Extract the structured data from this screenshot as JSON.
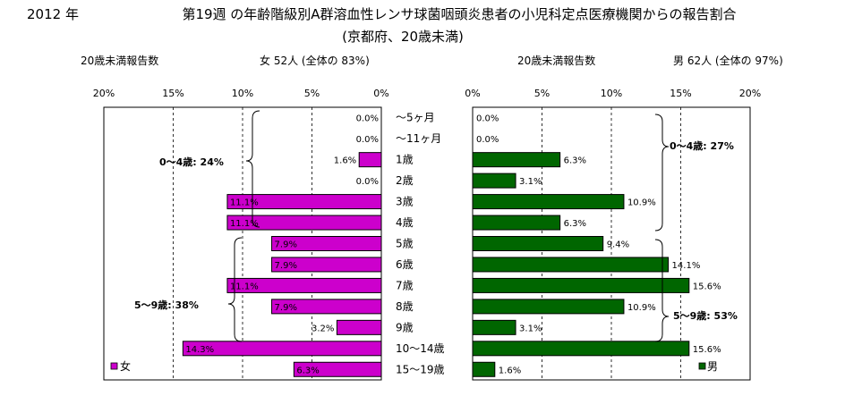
{
  "header": {
    "year": "2012 年",
    "title_line1": "第19週 の年齢階級別A群溶血性レンサ球菌咽頭炎患者の小児科定点医療機関からの報告割合",
    "title_line2": "(京都府、20歳未満)"
  },
  "left": {
    "caption": "20歳未満報告数",
    "summary": "女  52人 (全体の  83%)",
    "legend": "女",
    "bracket1": "0〜4歳:  24%",
    "bracket2": "5〜9歳:  38%"
  },
  "right": {
    "caption": "20歳未満報告数",
    "summary": "男  62人 (全体の  97%)",
    "legend": "男",
    "bracket1": "0〜4歳:  27%",
    "bracket2": "5〜9歳:  53%"
  },
  "chart_data": [
    {
      "type": "bar",
      "orientation": "horizontal",
      "direction": "right-to-left",
      "series": [
        {
          "name": "女",
          "color": "#cc00cc",
          "values": [
            0.0,
            0.0,
            1.6,
            0.0,
            11.1,
            11.1,
            7.9,
            7.9,
            11.1,
            7.9,
            3.2,
            14.3,
            6.3
          ]
        }
      ],
      "categories": [
        "〜5ヶ月",
        "〜11ヶ月",
        "1歳",
        "2歳",
        "3歳",
        "4歳",
        "5歳",
        "6歳",
        "7歳",
        "8歳",
        "9歳",
        "10〜14歳",
        "15〜19歳"
      ],
      "value_labels": [
        "0.0%",
        "0.0%",
        "1.6%",
        "0.0%",
        "11.1%",
        "11.1%",
        "7.9%",
        "7.9%",
        "11.1%",
        "7.9%",
        "3.2%",
        "14.3%",
        "6.3%"
      ],
      "xlim": [
        0,
        20
      ],
      "ticks": [
        "20%",
        "15%",
        "10%",
        "5%",
        "0%"
      ],
      "grid": true
    },
    {
      "type": "bar",
      "orientation": "horizontal",
      "direction": "left-to-right",
      "series": [
        {
          "name": "男",
          "color": "#006600",
          "values": [
            0.0,
            0.0,
            6.3,
            3.1,
            10.9,
            6.3,
            9.4,
            14.1,
            15.6,
            10.9,
            3.1,
            15.6,
            1.6
          ]
        }
      ],
      "categories": [
        "〜5ヶ月",
        "〜11ヶ月",
        "1歳",
        "2歳",
        "3歳",
        "4歳",
        "5歳",
        "6歳",
        "7歳",
        "8歳",
        "9歳",
        "10〜14歳",
        "15〜19歳"
      ],
      "value_labels": [
        "0.0%",
        "0.0%",
        "6.3%",
        "3.1%",
        "10.9%",
        "6.3%",
        "9.4%",
        "14.1%",
        "15.6%",
        "10.9%",
        "3.1%",
        "15.6%",
        "1.6%"
      ],
      "xlim": [
        0,
        20
      ],
      "ticks": [
        "0%",
        "5%",
        "10%",
        "15%",
        "20%"
      ],
      "grid": true
    }
  ]
}
